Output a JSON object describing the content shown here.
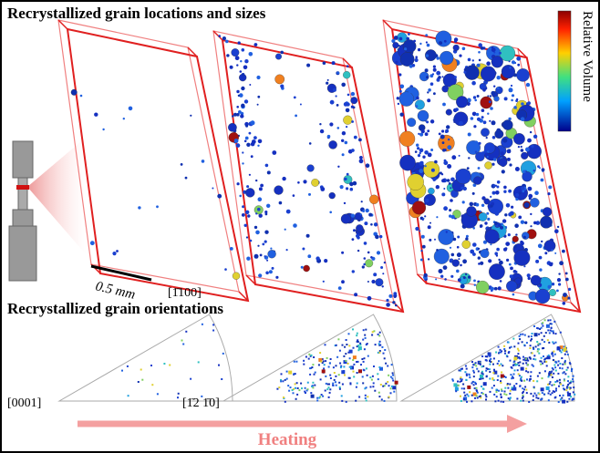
{
  "figure": {
    "panel_top_title": "Recrystallized grain locations and sizes",
    "colorbar_label": "Relative Volume",
    "scale_bar": "0.5 mm",
    "direction_top": "[1̄100]",
    "panel_bottom_title": "Recrystallized grain orientations",
    "direction_left": "[0001]",
    "direction_right": "[1̄2 1̄0]",
    "arrow_label": "Heating"
  }
}
